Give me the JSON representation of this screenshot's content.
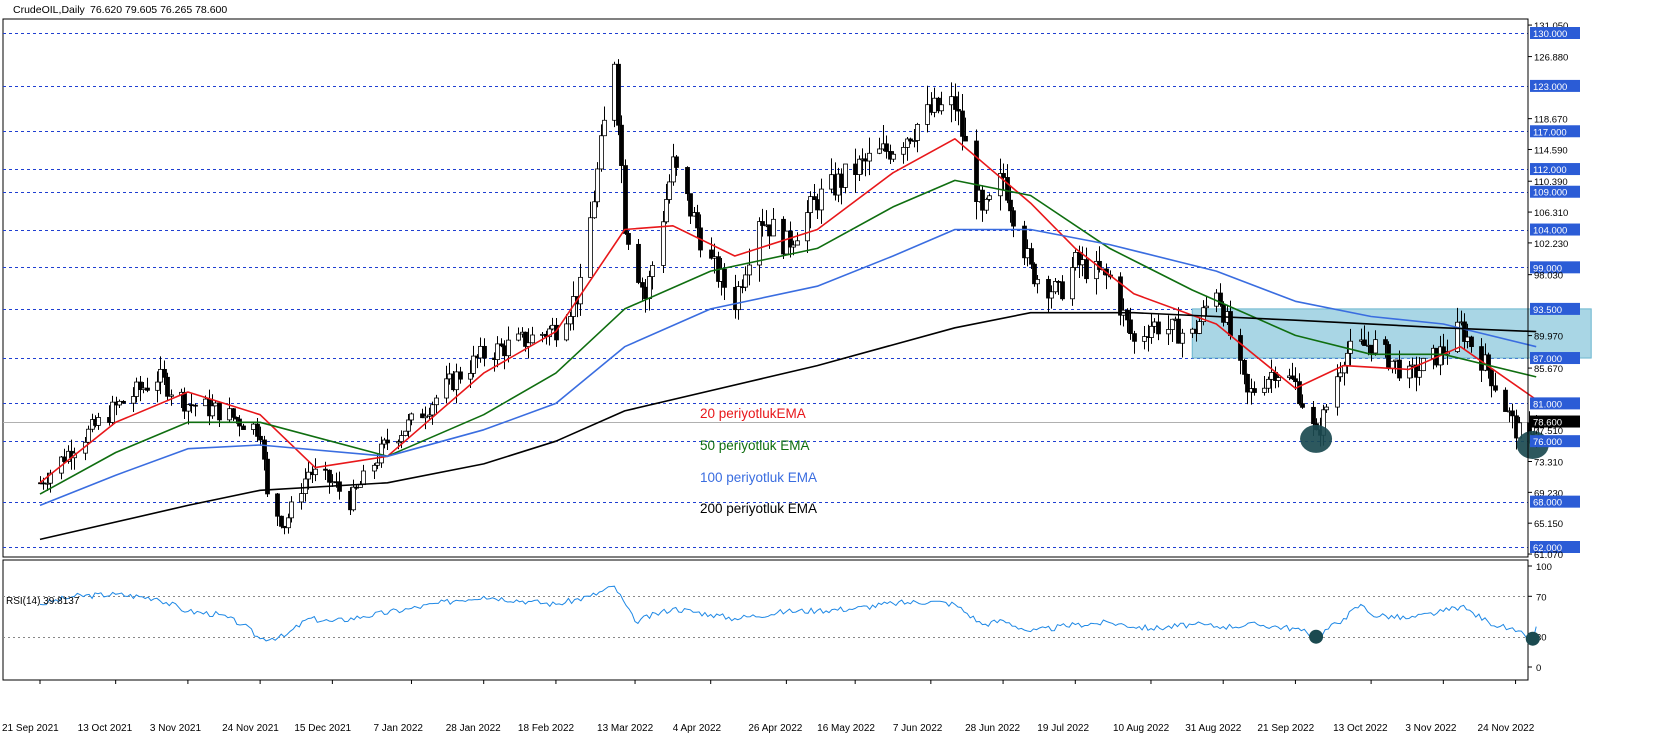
{
  "header": {
    "symbol_label": "CrudeOIL,Daily",
    "ohlc": "76.620 79.605 76.265 78.600"
  },
  "rsi_header": {
    "label": "RSI(14) 39.8137"
  },
  "legend": [
    {
      "label": "20 periyotlukEMA",
      "color": "#e8171a"
    },
    {
      "label": "50 periyotluk EMA",
      "color": "#0f6e10"
    },
    {
      "label": "100 periyotluk EMA",
      "color": "#3a6de0"
    },
    {
      "label": "200 periyotluk EMA",
      "color": "#000000"
    }
  ],
  "colors": {
    "level_line": "#1f3fd1",
    "box_fill": "#a9d6e5",
    "badge_bg": "#2b5cd6",
    "rsi_line": "#1e88e5",
    "marker": "#1b4a50",
    "candle": "#000000"
  },
  "chart_data": [
    {
      "type": "candlestick",
      "title": "CrudeOIL,Daily",
      "ylim": [
        61.07,
        132.5
      ],
      "price_labels": [
        "131.050",
        "130.000",
        "126.880",
        "123.000",
        "118.670",
        "117.000",
        "114.590",
        "112.000",
        "110.390",
        "109.000",
        "106.310",
        "104.000",
        "102.230",
        "99.000",
        "98.030",
        "93.500",
        "89.970",
        "87.000",
        "85.670",
        "81.000",
        "78.600",
        "77.510",
        "76.000",
        "73.310",
        "69.230",
        "68.000",
        "65.150",
        "62.000",
        "61.070"
      ],
      "horizontal_levels": [
        130,
        123,
        117,
        112,
        109,
        104,
        99,
        93.5,
        87,
        81,
        76,
        68,
        62
      ],
      "level_badges": [
        "130.000",
        "123.000",
        "117.000",
        "112.000",
        "109.000",
        "104.000",
        "99.000",
        "93.500",
        "87.000",
        "81.000",
        "76.000",
        "68.000",
        "62.000"
      ],
      "current_price": {
        "value": 78.6,
        "label": "78.600"
      },
      "x_labels": [
        "21 Sep 2021",
        "13 Oct 2021",
        "3 Nov 2021",
        "24 Nov 2021",
        "15 Dec 2021",
        "7 Jan 2022",
        "28 Jan 2022",
        "18 Feb 2022",
        "13 Mar 2022",
        "4 Apr 2022",
        "26 Apr 2022",
        "16 May 2022",
        "7 Jun 2022",
        "28 Jun 2022",
        "19 Jul 2022",
        "10 Aug 2022",
        "31 Aug 2022",
        "21 Sep 2022",
        "13 Oct 2022",
        "3 Nov 2022",
        "24 Nov 2022"
      ],
      "price_path": [
        [
          "21 Sep 2021",
          70.5
        ],
        [
          "30 Sep 2021",
          75.0
        ],
        [
          "13 Oct 2021",
          80.5
        ],
        [
          "25 Oct 2021",
          84.5
        ],
        [
          "3 Nov 2021",
          81.0
        ],
        [
          "12 Nov 2021",
          80.0
        ],
        [
          "24 Nov 2021",
          77.5
        ],
        [
          "26 Nov 2021",
          68.5
        ],
        [
          "1 Dec 2021",
          65.0
        ],
        [
          "8 Dec 2021",
          72.0
        ],
        [
          "15 Dec 2021",
          70.5
        ],
        [
          "20 Dec 2021",
          68.0
        ],
        [
          "31 Dec 2021",
          76.0
        ],
        [
          "7 Jan 2022",
          78.5
        ],
        [
          "20 Jan 2022",
          84.5
        ],
        [
          "28 Jan 2022",
          87.5
        ],
        [
          "10 Feb 2022",
          89.5
        ],
        [
          "18 Feb 2022",
          91.0
        ],
        [
          "25 Feb 2022",
          96.0
        ],
        [
          "7 Mar 2022",
          127.0
        ],
        [
          "10 Mar 2022",
          105.0
        ],
        [
          "16 Mar 2022",
          95.0
        ],
        [
          "24 Mar 2022",
          112.5
        ],
        [
          "4 Apr 2022",
          99.5
        ],
        [
          "11 Apr 2022",
          94.5
        ],
        [
          "18 Apr 2022",
          106.0
        ],
        [
          "26 Apr 2022",
          102.0
        ],
        [
          "5 May 2022",
          108.0
        ],
        [
          "16 May 2022",
          112.0
        ],
        [
          "27 May 2022",
          115.0
        ],
        [
          "7 Jun 2022",
          119.5
        ],
        [
          "14 Jun 2022",
          120.5
        ],
        [
          "22 Jun 2022",
          105.5
        ],
        [
          "28 Jun 2022",
          111.0
        ],
        [
          "6 Jul 2022",
          98.5
        ],
        [
          "14 Jul 2022",
          95.5
        ],
        [
          "19 Jul 2022",
          99.5
        ],
        [
          "29 Jul 2022",
          97.5
        ],
        [
          "5 Aug 2022",
          89.0
        ],
        [
          "10 Aug 2022",
          91.5
        ],
        [
          "22 Aug 2022",
          90.0
        ],
        [
          "29 Aug 2022",
          96.5
        ],
        [
          "7 Sep 2022",
          82.0
        ],
        [
          "15 Sep 2022",
          85.5
        ],
        [
          "21 Sep 2022",
          83.5
        ],
        [
          "27 Sep 2022",
          76.5
        ],
        [
          "5 Oct 2022",
          87.5
        ],
        [
          "13 Oct 2022",
          89.0
        ],
        [
          "24 Oct 2022",
          84.5
        ],
        [
          "3 Nov 2022",
          88.0
        ],
        [
          "8 Nov 2022",
          91.0
        ],
        [
          "16 Nov 2022",
          85.5
        ],
        [
          "24 Nov 2022",
          77.5
        ],
        [
          "28 Nov 2022",
          76.0
        ],
        [
          "30 Nov 2022",
          78.6
        ]
      ],
      "series": [
        {
          "name": "20 periyotlukEMA",
          "points": [
            [
              "21 Sep 2021",
              70.5
            ],
            [
              "13 Oct 2021",
              78.5
            ],
            [
              "3 Nov 2021",
              82.5
            ],
            [
              "24 Nov 2021",
              79.5
            ],
            [
              "10 Dec 2021",
              72.5
            ],
            [
              "31 Dec 2021",
              74.0
            ],
            [
              "28 Jan 2022",
              85.0
            ],
            [
              "18 Feb 2022",
              90.5
            ],
            [
              "10 Mar 2022",
              104.0
            ],
            [
              "24 Mar 2022",
              104.5
            ],
            [
              "11 Apr 2022",
              100.5
            ],
            [
              "5 May 2022",
              104.0
            ],
            [
              "27 May 2022",
              111.5
            ],
            [
              "14 Jun 2022",
              116.0
            ],
            [
              "6 Jul 2022",
              107.5
            ],
            [
              "19 Jul 2022",
              101.5
            ],
            [
              "5 Aug 2022",
              95.5
            ],
            [
              "29 Aug 2022",
              91.5
            ],
            [
              "21 Sep 2022",
              83.0
            ],
            [
              "5 Oct 2022",
              86.0
            ],
            [
              "24 Oct 2022",
              85.5
            ],
            [
              "8 Nov 2022",
              88.5
            ],
            [
              "30 Nov 2022",
              81.5
            ]
          ]
        },
        {
          "name": "50 periyotluk EMA",
          "points": [
            [
              "21 Sep 2021",
              69.0
            ],
            [
              "13 Oct 2021",
              74.5
            ],
            [
              "3 Nov 2021",
              78.5
            ],
            [
              "24 Nov 2021",
              78.5
            ],
            [
              "31 Dec 2021",
              74.0
            ],
            [
              "28 Jan 2022",
              79.5
            ],
            [
              "18 Feb 2022",
              85.0
            ],
            [
              "10 Mar 2022",
              93.5
            ],
            [
              "4 Apr 2022",
              98.5
            ],
            [
              "5 May 2022",
              101.5
            ],
            [
              "27 May 2022",
              107.0
            ],
            [
              "14 Jun 2022",
              110.5
            ],
            [
              "6 Jul 2022",
              108.5
            ],
            [
              "29 Jul 2022",
              101.5
            ],
            [
              "22 Aug 2022",
              96.0
            ],
            [
              "21 Sep 2022",
              90.0
            ],
            [
              "13 Oct 2022",
              87.5
            ],
            [
              "3 Nov 2022",
              87.5
            ],
            [
              "30 Nov 2022",
              84.5
            ]
          ]
        },
        {
          "name": "100 periyotluk EMA",
          "points": [
            [
              "21 Sep 2021",
              67.5
            ],
            [
              "13 Oct 2021",
              71.5
            ],
            [
              "3 Nov 2021",
              75.0
            ],
            [
              "24 Nov 2021",
              75.5
            ],
            [
              "31 Dec 2021",
              74.0
            ],
            [
              "28 Jan 2022",
              77.5
            ],
            [
              "18 Feb 2022",
              81.0
            ],
            [
              "10 Mar 2022",
              88.5
            ],
            [
              "4 Apr 2022",
              93.5
            ],
            [
              "5 May 2022",
              96.5
            ],
            [
              "27 May 2022",
              100.5
            ],
            [
              "14 Jun 2022",
              104.0
            ],
            [
              "6 Jul 2022",
              104.0
            ],
            [
              "29 Jul 2022",
              102.0
            ],
            [
              "29 Aug 2022",
              98.5
            ],
            [
              "21 Sep 2022",
              94.5
            ],
            [
              "13 Oct 2022",
              92.5
            ],
            [
              "3 Nov 2022",
              91.5
            ],
            [
              "30 Nov 2022",
              88.5
            ]
          ]
        },
        {
          "name": "200 periyotluk EMA",
          "points": [
            [
              "21 Sep 2021",
              63.0
            ],
            [
              "3 Nov 2021",
              67.5
            ],
            [
              "24 Nov 2021",
              69.5
            ],
            [
              "31 Dec 2021",
              70.5
            ],
            [
              "28 Jan 2022",
              73.0
            ],
            [
              "18 Feb 2022",
              76.0
            ],
            [
              "10 Mar 2022",
              80.0
            ],
            [
              "5 May 2022",
              86.0
            ],
            [
              "14 Jun 2022",
              91.0
            ],
            [
              "6 Jul 2022",
              93.0
            ],
            [
              "5 Aug 2022",
              93.0
            ],
            [
              "21 Sep 2022",
              92.0
            ],
            [
              "3 Nov 2022",
              91.0
            ],
            [
              "30 Nov 2022",
              90.5
            ]
          ]
        }
      ],
      "zones": [
        {
          "from": "22 Aug 2022",
          "to": "30 Nov 2022",
          "low": 87,
          "high": 93.5
        }
      ],
      "markers": [
        {
          "x": "27 Sep 2022",
          "y": 76.3
        },
        {
          "x": "29 Nov 2022",
          "y": 75.5
        }
      ]
    },
    {
      "type": "line",
      "title": "RSI(14) 39.8137",
      "ylim": [
        0,
        100
      ],
      "y_ticks": [
        "100",
        "70",
        "30",
        "0"
      ],
      "guide_levels": [
        70,
        30
      ],
      "series": [
        {
          "name": "RSI(14)",
          "points": [
            [
              "21 Sep 2021",
              62
            ],
            [
              "1 Oct 2021",
              70
            ],
            [
              "13 Oct 2021",
              72
            ],
            [
              "25 Oct 2021",
              68
            ],
            [
              "3 Nov 2021",
              55
            ],
            [
              "12 Nov 2021",
              52
            ],
            [
              "19 Nov 2021",
              42
            ],
            [
              "24 Nov 2021",
              28
            ],
            [
              "1 Dec 2021",
              30
            ],
            [
              "8 Dec 2021",
              48
            ],
            [
              "15 Dec 2021",
              45
            ],
            [
              "24 Dec 2021",
              50
            ],
            [
              "7 Jan 2022",
              58
            ],
            [
              "20 Jan 2022",
              66
            ],
            [
              "28 Jan 2022",
              70
            ],
            [
              "10 Feb 2022",
              65
            ],
            [
              "18 Feb 2022",
              62
            ],
            [
              "28 Feb 2022",
              70
            ],
            [
              "7 Mar 2022",
              80
            ],
            [
              "13 Mar 2022",
              45
            ],
            [
              "24 Mar 2022",
              58
            ],
            [
              "4 Apr 2022",
              52
            ],
            [
              "11 Apr 2022",
              48
            ],
            [
              "26 Apr 2022",
              55
            ],
            [
              "5 May 2022",
              56
            ],
            [
              "16 May 2022",
              58
            ],
            [
              "27 May 2022",
              63
            ],
            [
              "7 Jun 2022",
              65
            ],
            [
              "14 Jun 2022",
              62
            ],
            [
              "22 Jun 2022",
              42
            ],
            [
              "28 Jun 2022",
              46
            ],
            [
              "6 Jul 2022",
              35
            ],
            [
              "19 Jul 2022",
              42
            ],
            [
              "29 Jul 2022",
              44
            ],
            [
              "10 Aug 2022",
              38
            ],
            [
              "22 Aug 2022",
              42
            ],
            [
              "31 Aug 2022",
              40
            ],
            [
              "10 Sep 2022",
              42
            ],
            [
              "21 Sep 2022",
              38
            ],
            [
              "27 Sep 2022",
              30
            ],
            [
              "5 Oct 2022",
              48
            ],
            [
              "10 Oct 2022",
              62
            ],
            [
              "13 Oct 2022",
              52
            ],
            [
              "24 Oct 2022",
              48
            ],
            [
              "3 Nov 2022",
              55
            ],
            [
              "8 Nov 2022",
              60
            ],
            [
              "16 Nov 2022",
              45
            ],
            [
              "24 Nov 2022",
              35
            ],
            [
              "29 Nov 2022",
              28
            ],
            [
              "30 Nov 2022",
              40
            ]
          ]
        }
      ],
      "markers": [
        {
          "x": "27 Sep 2022",
          "y": 30
        },
        {
          "x": "29 Nov 2022",
          "y": 28
        }
      ]
    }
  ]
}
